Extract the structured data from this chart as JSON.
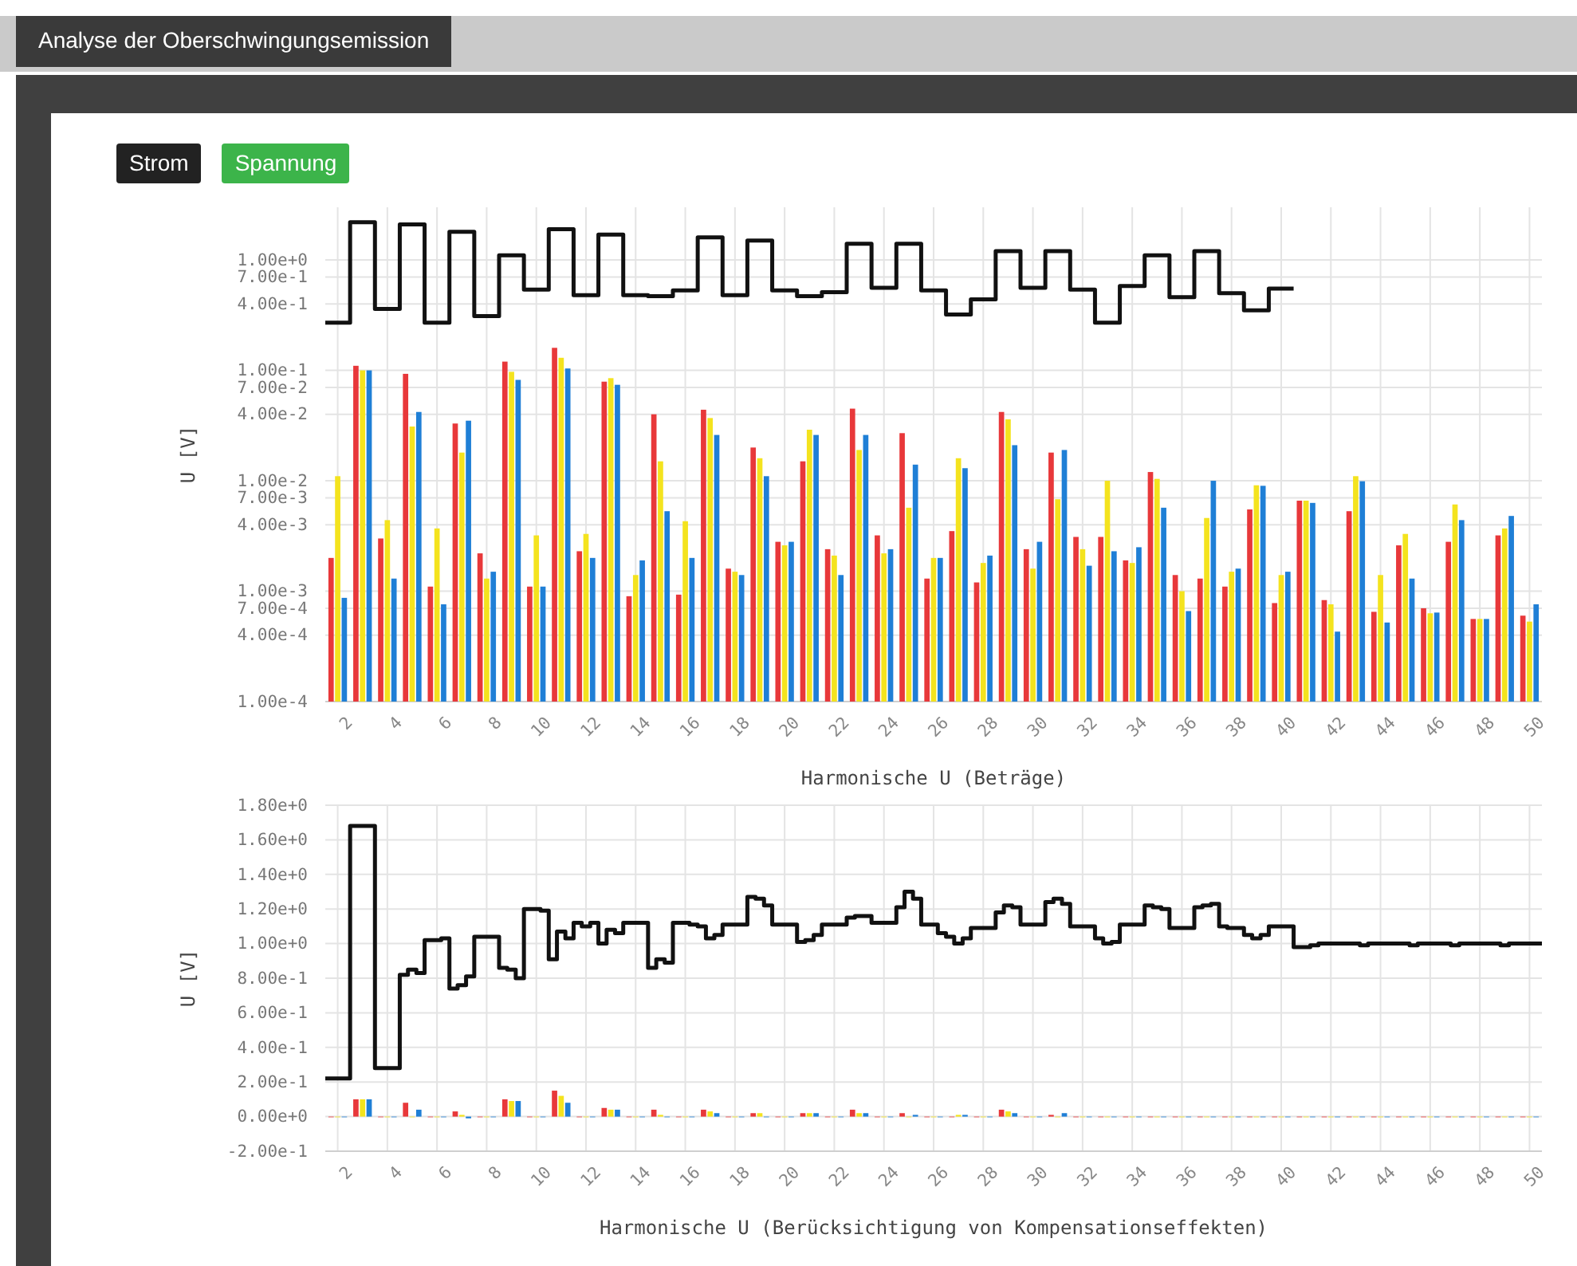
{
  "chart_data": [
    {
      "type": "bar",
      "title": "Analyse der Oberschwingungsemission",
      "annotations": [
        "Strom",
        "Spannung"
      ],
      "xlabel": "Harmonische U (Beträge)",
      "ylabel": "U [V]",
      "log": "y",
      "grid": true,
      "xlim": [
        1.5,
        50.5
      ],
      "xticks": [
        2,
        4,
        6,
        8,
        10,
        12,
        14,
        16,
        18,
        20,
        22,
        24,
        26,
        28,
        30,
        32,
        34,
        36,
        38,
        40,
        42,
        44,
        46,
        48,
        50
      ],
      "ylim": [
        0.0001,
        3
      ],
      "yticks": [
        {
          "value": 0.0001,
          "label": "1.00e-4"
        },
        {
          "value": 0.0004,
          "label": "4.00e-4"
        },
        {
          "value": 0.0007,
          "label": "7.00e-4"
        },
        {
          "value": 0.001,
          "label": "1.00e-3"
        },
        {
          "value": 0.004,
          "label": "4.00e-3"
        },
        {
          "value": 0.007,
          "label": "7.00e-3"
        },
        {
          "value": 0.01,
          "label": "1.00e-2"
        },
        {
          "value": 0.04,
          "label": "4.00e-2"
        },
        {
          "value": 0.07,
          "label": "7.00e-2"
        },
        {
          "value": 0.1,
          "label": "1.00e-1"
        },
        {
          "value": 0.4,
          "label": "4.00e-1"
        },
        {
          "value": 0.7,
          "label": "7.00e-1"
        },
        {
          "value": 1,
          "label": "1.00e+0"
        }
      ],
      "x": [
        2,
        3,
        4,
        5,
        6,
        7,
        8,
        9,
        10,
        11,
        12,
        13,
        14,
        15,
        16,
        17,
        18,
        19,
        20,
        21,
        22,
        23,
        24,
        25,
        26,
        27,
        28,
        29,
        30,
        31,
        32,
        33,
        34,
        35,
        36,
        37,
        38,
        39,
        40,
        41,
        42,
        43,
        44,
        45,
        46,
        47,
        48,
        49,
        50
      ],
      "series": [
        {
          "color": "#e8383a",
          "values": [
            0.002,
            0.11,
            0.003,
            0.093,
            0.0011,
            0.033,
            0.0022,
            0.12,
            0.0011,
            0.16,
            0.0023,
            0.079,
            0.0009,
            0.04,
            0.00093,
            0.044,
            0.0016,
            0.02,
            0.0028,
            0.015,
            0.0024,
            0.045,
            0.0032,
            0.027,
            0.0013,
            0.0035,
            0.0012,
            0.042,
            0.0024,
            0.018,
            0.0031,
            0.0031,
            0.0019,
            0.012,
            0.0014,
            0.0013,
            0.0011,
            0.0055,
            0.00078,
            0.0066,
            0.00083,
            0.0053,
            0.00065,
            0.0026,
            0.0007,
            0.0028,
            0.00056,
            0.0032,
            0.0006
          ]
        },
        {
          "color": "#f4e31e",
          "values": [
            0.011,
            0.1,
            0.0044,
            0.031,
            0.0037,
            0.018,
            0.0013,
            0.097,
            0.0032,
            0.13,
            0.0033,
            0.085,
            0.0014,
            0.015,
            0.0043,
            0.037,
            0.0015,
            0.016,
            0.0026,
            0.029,
            0.0021,
            0.019,
            0.0022,
            0.0057,
            0.002,
            0.016,
            0.0018,
            0.036,
            0.0016,
            0.0068,
            0.0024,
            0.01,
            0.0018,
            0.0104,
            0.001,
            0.0046,
            0.0015,
            0.0091,
            0.0014,
            0.0066,
            0.00076,
            0.011,
            0.0014,
            0.0033,
            0.00063,
            0.0061,
            0.00056,
            0.0037,
            0.00053
          ]
        },
        {
          "color": "#1f7fd6",
          "values": [
            0.00087,
            0.1,
            0.0013,
            0.042,
            0.00076,
            0.035,
            0.0015,
            0.082,
            0.0011,
            0.104,
            0.002,
            0.074,
            0.0019,
            0.0053,
            0.002,
            0.026,
            0.0014,
            0.011,
            0.0028,
            0.026,
            0.0014,
            0.026,
            0.0024,
            0.014,
            0.002,
            0.013,
            0.0021,
            0.021,
            0.0028,
            0.019,
            0.0017,
            0.0023,
            0.0025,
            0.0057,
            0.00066,
            0.01,
            0.0016,
            0.009,
            0.0015,
            0.0063,
            0.00043,
            0.0099,
            0.00052,
            0.0013,
            0.00064,
            0.0044,
            0.00056,
            0.0048,
            0.00076
          ]
        },
        {
          "type": "step",
          "color": "#111111",
          "x": [
            1.5,
            2.5,
            3.5,
            4.5,
            5.5,
            6.5,
            7.5,
            8.5,
            9.5,
            10.5,
            11.5,
            12.5,
            13.5,
            14.5,
            15.5,
            16.5,
            17.5,
            18.5,
            19.5,
            20.5,
            21.5,
            22.5,
            23.5,
            24.5,
            25.5,
            26.5,
            27.5,
            28.5,
            29.5,
            30.5,
            31.5,
            32.5,
            33.5,
            34.5,
            35.5,
            36.5,
            37.5,
            38.5,
            39.5,
            40.5
          ],
          "values": [
            0.27,
            2.2,
            0.36,
            2.1,
            0.27,
            1.8,
            0.31,
            1.1,
            0.54,
            1.9,
            0.48,
            1.7,
            0.48,
            0.47,
            0.53,
            1.6,
            0.48,
            1.5,
            0.53,
            0.47,
            0.51,
            1.4,
            0.56,
            1.4,
            0.53,
            0.32,
            0.44,
            1.2,
            0.56,
            1.2,
            0.54,
            0.27,
            0.58,
            1.1,
            0.46,
            1.2,
            0.5,
            0.35,
            0.55,
            0.55
          ]
        }
      ]
    },
    {
      "type": "bar",
      "xlabel": "Harmonische U (Berücksichtigung von Kompensationseffekten)",
      "ylabel": "U [V]",
      "grid": true,
      "xlim": [
        1.5,
        50.5
      ],
      "xticks": [
        2,
        4,
        6,
        8,
        10,
        12,
        14,
        16,
        18,
        20,
        22,
        24,
        26,
        28,
        30,
        32,
        34,
        36,
        38,
        40,
        42,
        44,
        46,
        48,
        50
      ],
      "ylim": [
        -0.2,
        1.8
      ],
      "yticks": [
        {
          "value": -0.2,
          "label": "-2.00e-1"
        },
        {
          "value": 0,
          "label": "0.00e+0"
        },
        {
          "value": 0.2,
          "label": "2.00e-1"
        },
        {
          "value": 0.4,
          "label": "4.00e-1"
        },
        {
          "value": 0.6,
          "label": "6.00e-1"
        },
        {
          "value": 0.8,
          "label": "8.00e-1"
        },
        {
          "value": 1,
          "label": "1.00e+0"
        },
        {
          "value": 1.2,
          "label": "1.20e+0"
        },
        {
          "value": 1.4,
          "label": "1.40e+0"
        },
        {
          "value": 1.6,
          "label": "1.60e+0"
        },
        {
          "value": 1.8,
          "label": "1.80e+0"
        }
      ],
      "x": [
        2,
        3,
        4,
        5,
        6,
        7,
        8,
        9,
        10,
        11,
        12,
        13,
        14,
        15,
        16,
        17,
        18,
        19,
        20,
        21,
        22,
        23,
        24,
        25,
        26,
        27,
        28,
        29,
        30,
        31,
        32,
        33,
        34,
        35,
        36,
        37,
        38,
        39,
        40,
        41,
        42,
        43,
        44,
        45,
        46,
        47,
        48,
        49,
        50
      ],
      "series": [
        {
          "color": "#e8383a",
          "values": [
            0,
            0.1,
            0,
            0.08,
            0,
            0.03,
            0,
            0.1,
            0,
            0.15,
            0,
            0.05,
            0,
            0.04,
            0,
            0.04,
            0,
            0.02,
            0,
            0.02,
            0,
            0.04,
            0,
            0.02,
            0,
            0,
            0,
            0.04,
            0,
            0.01,
            0,
            0,
            0,
            0,
            0,
            0,
            0,
            0,
            0,
            0,
            0,
            0,
            0,
            0,
            0,
            0,
            0,
            0,
            0
          ]
        },
        {
          "color": "#f4e31e",
          "values": [
            0,
            0.1,
            0,
            0,
            0,
            0.01,
            0,
            0.09,
            0,
            0.12,
            0,
            0.04,
            0,
            0.01,
            0,
            0.03,
            0,
            0.02,
            0,
            0.02,
            0,
            0.02,
            0,
            0,
            0,
            0.01,
            0,
            0.03,
            0,
            0,
            0,
            0,
            0,
            0,
            0,
            0,
            0,
            0,
            0,
            0,
            0,
            0,
            0,
            0,
            0,
            0,
            0,
            0,
            0
          ]
        },
        {
          "color": "#1f7fd6",
          "values": [
            0,
            0.1,
            0,
            0.04,
            0,
            -0.01,
            0,
            0.09,
            0,
            0.08,
            0,
            0.04,
            0,
            0,
            0,
            0.02,
            0,
            0,
            0,
            0.02,
            0,
            0.02,
            0,
            0.01,
            0,
            0.01,
            0,
            0.02,
            0,
            0.02,
            0,
            0,
            0,
            0,
            0,
            0,
            0,
            0,
            0,
            0,
            0,
            0,
            0,
            0,
            0,
            0,
            0,
            0,
            0
          ]
        },
        {
          "type": "step",
          "color": "#111111",
          "x": [
            1.5,
            2.5,
            3.5,
            4.5,
            4.83,
            5.17,
            5.5,
            6.17,
            6.5,
            6.83,
            7.17,
            7.5,
            8.5,
            8.83,
            9.17,
            9.5,
            10.17,
            10.5,
            10.83,
            11.17,
            11.5,
            11.83,
            12.17,
            12.5,
            12.83,
            13.17,
            13.5,
            14.5,
            14.83,
            15.17,
            15.5,
            16.17,
            16.5,
            16.83,
            17.17,
            17.5,
            18.5,
            18.83,
            19.17,
            19.5,
            20.5,
            20.83,
            21.17,
            21.5,
            22.5,
            22.83,
            23.5,
            24.5,
            24.83,
            25.17,
            25.5,
            26.17,
            26.5,
            26.83,
            27.17,
            27.5,
            28.5,
            28.83,
            29.17,
            29.5,
            30.5,
            30.83,
            31.17,
            31.5,
            32.5,
            32.83,
            33.17,
            33.5,
            34.5,
            34.83,
            35.17,
            35.5,
            36.5,
            36.83,
            37.17,
            37.5,
            37.83,
            38.5,
            38.83,
            39.17,
            39.5,
            40.5,
            41.17,
            41.5,
            43.17,
            43.5,
            45.17,
            45.5,
            46.83,
            47.17,
            48.83,
            49.17,
            50.5
          ],
          "values": [
            0.22,
            1.68,
            0.28,
            0.82,
            0.85,
            0.83,
            1.02,
            1.03,
            0.74,
            0.76,
            0.81,
            1.04,
            0.86,
            0.85,
            0.8,
            1.2,
            1.19,
            0.91,
            1.07,
            1.03,
            1.12,
            1.1,
            1.12,
            1.0,
            1.08,
            1.06,
            1.12,
            0.86,
            0.91,
            0.89,
            1.12,
            1.11,
            1.1,
            1.03,
            1.05,
            1.11,
            1.27,
            1.26,
            1.22,
            1.11,
            1.01,
            1.02,
            1.05,
            1.11,
            1.15,
            1.16,
            1.12,
            1.21,
            1.3,
            1.26,
            1.11,
            1.06,
            1.04,
            1.0,
            1.03,
            1.09,
            1.18,
            1.22,
            1.21,
            1.11,
            1.24,
            1.26,
            1.23,
            1.1,
            1.03,
            1.0,
            1.01,
            1.11,
            1.22,
            1.21,
            1.2,
            1.09,
            1.21,
            1.22,
            1.23,
            1.1,
            1.09,
            1.05,
            1.03,
            1.05,
            1.1,
            0.98,
            0.99,
            1.0,
            0.99,
            1.0,
            0.99,
            1.0,
            0.99,
            1.0,
            0.99,
            1.0,
            1.0
          ]
        }
      ]
    }
  ]
}
